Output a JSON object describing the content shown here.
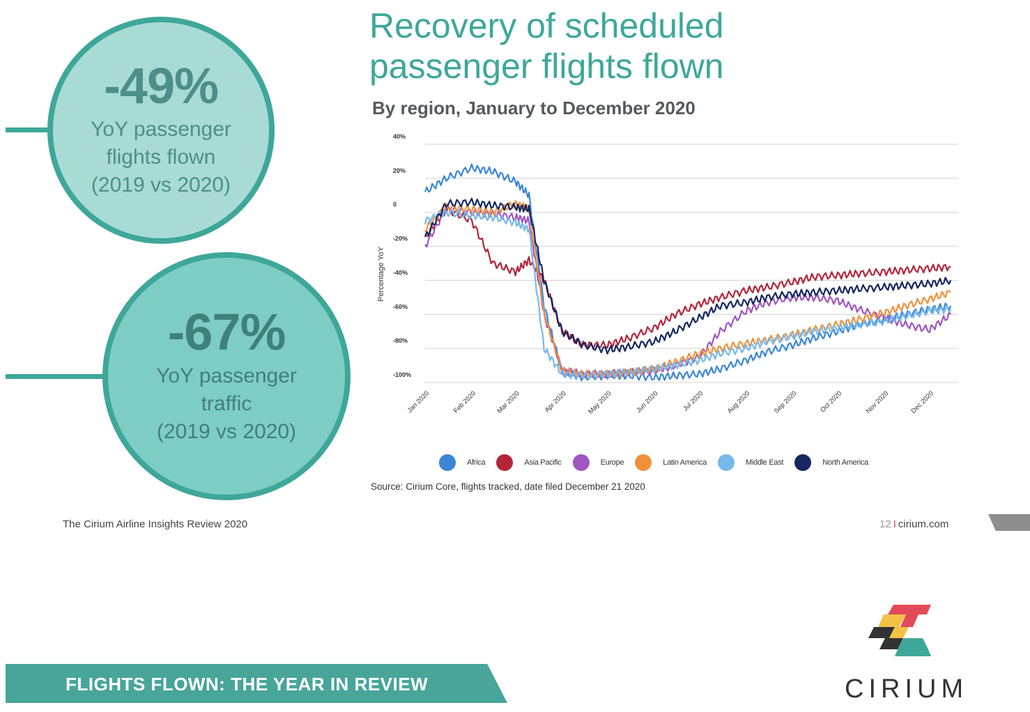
{
  "stats": [
    {
      "value": "-49%",
      "caption": "YoY passenger\nflights flown\n(2019 vs 2020)"
    },
    {
      "value": "-67%",
      "caption": "YoY passenger\ntraffic\n(2019 vs 2020)"
    }
  ],
  "chart_data": {
    "type": "line",
    "title": "Recovery of scheduled\npassenger flights flown",
    "subtitle": "By region, January to December 2020",
    "ylabel": "Percentage YoY",
    "xlabel": "",
    "ylim": [
      -100,
      40
    ],
    "yticks": [
      {
        "v": 40,
        "label": "40%"
      },
      {
        "v": 20,
        "label": "20%"
      },
      {
        "v": 0,
        "label": "0"
      },
      {
        "v": -20,
        "label": "-20%"
      },
      {
        "v": -40,
        "label": "-40%"
      },
      {
        "v": -60,
        "label": "-60%"
      },
      {
        "v": -80,
        "label": "-80%"
      },
      {
        "v": -100,
        "label": "-100%"
      }
    ],
    "x": [
      "2020-01-01",
      "2020-01-15",
      "2020-02-01",
      "2020-02-15",
      "2020-03-01",
      "2020-03-10",
      "2020-03-20",
      "2020-04-01",
      "2020-04-15",
      "2020-05-01",
      "2020-05-15",
      "2020-06-01",
      "2020-06-15",
      "2020-07-01",
      "2020-07-15",
      "2020-08-01",
      "2020-08-15",
      "2020-09-01",
      "2020-09-15",
      "2020-10-01",
      "2020-10-15",
      "2020-11-01",
      "2020-11-15",
      "2020-12-01",
      "2020-12-15"
    ],
    "xticks": [
      "Jan 2020",
      "Feb 2020",
      "Mar 2020",
      "Apr 2020",
      "May 2020",
      "Jun 2020",
      "Jul 2020",
      "Aug 2020",
      "Sep 2020",
      "Oct 2020",
      "Nov 2020",
      "Dec 2020"
    ],
    "grid": true,
    "legend_position": "bottom",
    "series": [
      {
        "name": "Africa",
        "color": "#3b86d6",
        "values": [
          12,
          20,
          26,
          24,
          18,
          10,
          -55,
          -94,
          -97,
          -96,
          -96,
          -97,
          -96,
          -95,
          -92,
          -87,
          -82,
          -78,
          -74,
          -70,
          -66,
          -63,
          -60,
          -57,
          -55
        ]
      },
      {
        "name": "Asia Pacific",
        "color": "#b3263a",
        "values": [
          -15,
          2,
          -5,
          -30,
          -35,
          -28,
          -40,
          -70,
          -78,
          -78,
          -74,
          -68,
          -60,
          -54,
          -50,
          -46,
          -44,
          -41,
          -38,
          -37,
          -36,
          -35,
          -34,
          -33,
          -32
        ]
      },
      {
        "name": "Europe",
        "color": "#a055bf",
        "values": [
          -20,
          2,
          0,
          -1,
          -3,
          -5,
          -60,
          -93,
          -95,
          -95,
          -94,
          -93,
          -90,
          -85,
          -70,
          -58,
          -53,
          -50,
          -50,
          -52,
          -57,
          -62,
          -66,
          -69,
          -60
        ]
      },
      {
        "name": "Latin America",
        "color": "#f0913a",
        "values": [
          -10,
          3,
          2,
          0,
          5,
          2,
          -60,
          -93,
          -95,
          -95,
          -94,
          -92,
          -88,
          -83,
          -80,
          -77,
          -75,
          -72,
          -69,
          -66,
          -63,
          -59,
          -55,
          -51,
          -47
        ]
      },
      {
        "name": "Middle East",
        "color": "#76b9ea",
        "values": [
          -5,
          0,
          -2,
          -3,
          -6,
          -10,
          -80,
          -95,
          -96,
          -95,
          -94,
          -92,
          -90,
          -87,
          -83,
          -80,
          -76,
          -73,
          -70,
          -68,
          -66,
          -64,
          -61,
          -58,
          -57
        ]
      },
      {
        "name": "North America",
        "color": "#152660",
        "values": [
          -15,
          5,
          6,
          4,
          3,
          2,
          -40,
          -70,
          -78,
          -81,
          -79,
          -76,
          -70,
          -62,
          -55,
          -53,
          -50,
          -48,
          -47,
          -46,
          -45,
          -44,
          -43,
          -42,
          -40
        ]
      }
    ],
    "source": "Source: Cirium Core, flights tracked, date filed December 21 2020"
  },
  "footer": {
    "report_name": "The Cirium Airline Insights Review 2020",
    "page_number": "12",
    "separator": "I",
    "site": "cirium.com"
  },
  "banner": "FLIGHTS FLOWN: THE YEAR IN REVIEW",
  "brand": {
    "name": "CIRIUM",
    "colors": {
      "teal": "#3ea79a",
      "red": "#e34a59",
      "yellow": "#f4c145",
      "dark": "#333333"
    }
  }
}
